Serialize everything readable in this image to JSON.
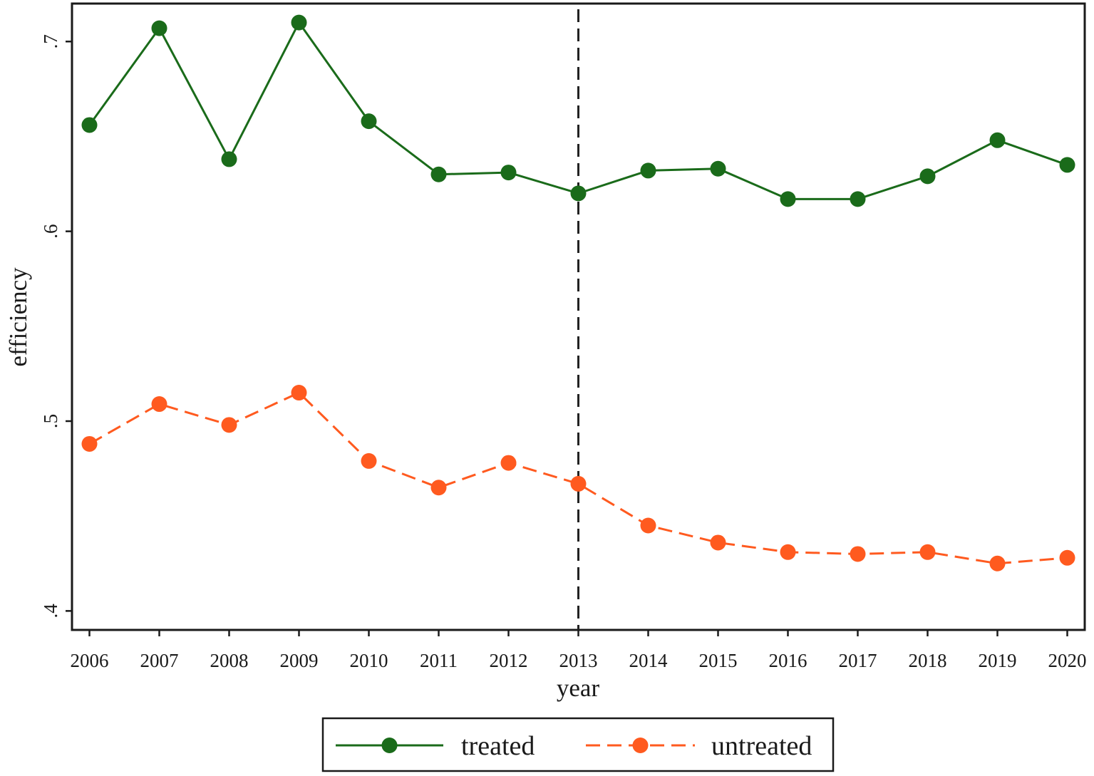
{
  "chart_data": {
    "type": "line",
    "xlabel": "year",
    "ylabel": "efficiency",
    "x": [
      2006,
      2007,
      2008,
      2009,
      2010,
      2011,
      2012,
      2013,
      2014,
      2015,
      2016,
      2017,
      2018,
      2019,
      2020
    ],
    "xticks": [
      "2006",
      "2007",
      "2008",
      "2009",
      "2010",
      "2011",
      "2012",
      "2013",
      "2014",
      "2015",
      "2016",
      "2017",
      "2018",
      "2019",
      "2020"
    ],
    "yticks": [
      {
        "value": 0.4,
        "label": ".4"
      },
      {
        "value": 0.5,
        "label": ".5"
      },
      {
        "value": 0.6,
        "label": ".6"
      },
      {
        "value": 0.7,
        "label": ".7"
      }
    ],
    "xlim": [
      2005.75,
      2020.25
    ],
    "ylim": [
      0.39,
      0.72
    ],
    "reference_line_x": 2013,
    "legend_position": "bottom",
    "grid": false,
    "series": [
      {
        "name": "treated",
        "color": "#1a6b1a",
        "line_style": "solid",
        "marker": "circle",
        "values": [
          0.656,
          0.707,
          0.638,
          0.71,
          0.658,
          0.63,
          0.631,
          0.62,
          0.632,
          0.633,
          0.617,
          0.617,
          0.629,
          0.648,
          0.635
        ]
      },
      {
        "name": "untreated",
        "color": "#ff5a1f",
        "line_style": "dashed",
        "marker": "circle",
        "values": [
          0.488,
          0.509,
          0.498,
          0.515,
          0.479,
          0.465,
          0.478,
          0.467,
          0.445,
          0.436,
          0.431,
          0.43,
          0.431,
          0.425,
          0.428
        ]
      }
    ]
  }
}
